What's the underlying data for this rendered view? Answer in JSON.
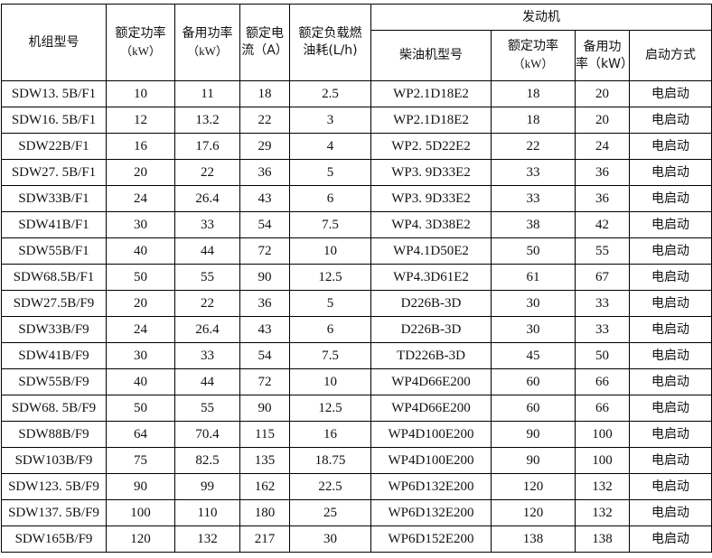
{
  "headers": {
    "model": "机组型号",
    "rated_power": "额定功率",
    "rated_power_unit": "（kW）",
    "standby_power": "备用功率",
    "standby_power_unit": "（kW）",
    "rated_current": "额定电",
    "rated_current_unit": "流（A）",
    "fuel": "额定负载燃",
    "fuel_unit": "油耗(L/h)",
    "engine": "发动机",
    "engine_model": "柴油机型号",
    "engine_rated_power": "额定功率",
    "engine_rated_power_unit": "（kW）",
    "engine_standby_power": "备用功",
    "engine_standby_power_unit": "率（kW）",
    "start_mode": "启动方式"
  },
  "rows": [
    [
      "SDW13. 5B/F1",
      "10",
      "11",
      "18",
      "2.5",
      "WP2.1D18E2",
      "18",
      "20",
      "电启动"
    ],
    [
      "SDW16. 5B/F1",
      "12",
      "13.2",
      "22",
      "3",
      "WP2.1D18E2",
      "18",
      "20",
      "电启动"
    ],
    [
      "SDW22B/F1",
      "16",
      "17.6",
      "29",
      "4",
      "WP2. 5D22E2",
      "22",
      "24",
      "电启动"
    ],
    [
      "SDW27. 5B/F1",
      "20",
      "22",
      "36",
      "5",
      "WP3. 9D33E2",
      "33",
      "36",
      "电启动"
    ],
    [
      "SDW33B/F1",
      "24",
      "26.4",
      "43",
      "6",
      "WP3. 9D33E2",
      "33",
      "36",
      "电启动"
    ],
    [
      "SDW41B/F1",
      "30",
      "33",
      "54",
      "7.5",
      "WP4. 3D38E2",
      "38",
      "42",
      "电启动"
    ],
    [
      "SDW55B/F1",
      "40",
      "44",
      "72",
      "10",
      "WP4.1D50E2",
      "50",
      "55",
      "电启动"
    ],
    [
      "SDW68.5B/F1",
      "50",
      "55",
      "90",
      "12.5",
      "WP4.3D61E2",
      "61",
      "67",
      "电启动"
    ],
    [
      "SDW27.5B/F9",
      "20",
      "22",
      "36",
      "5",
      "D226B-3D",
      "30",
      "33",
      "电启动"
    ],
    [
      "SDW33B/F9",
      "24",
      "26.4",
      "43",
      "6",
      "D226B-3D",
      "30",
      "33",
      "电启动"
    ],
    [
      "SDW41B/F9",
      "30",
      "33",
      "54",
      "7.5",
      "TD226B-3D",
      "45",
      "50",
      "电启动"
    ],
    [
      "SDW55B/F9",
      "40",
      "44",
      "72",
      "10",
      "WP4D66E200",
      "60",
      "66",
      "电启动"
    ],
    [
      "SDW68. 5B/F9",
      "50",
      "55",
      "90",
      "12.5",
      "WP4D66E200",
      "60",
      "66",
      "电启动"
    ],
    [
      "SDW88B/F9",
      "64",
      "70.4",
      "115",
      "16",
      "WP4D100E200",
      "90",
      "100",
      "电启动"
    ],
    [
      "SDW103B/F9",
      "75",
      "82.5",
      "135",
      "18.75",
      "WP4D100E200",
      "90",
      "100",
      "电启动"
    ],
    [
      "SDW123. 5B/F9",
      "90",
      "99",
      "162",
      "22.5",
      "WP6D132E200",
      "120",
      "132",
      "电启动"
    ],
    [
      "SDW137. 5B/F9",
      "100",
      "110",
      "180",
      "25",
      "WP6D132E200",
      "120",
      "132",
      "电启动"
    ],
    [
      "SDW165B/F9",
      "120",
      "132",
      "217",
      "30",
      "WP6D152E200",
      "138",
      "138",
      "电启动"
    ]
  ]
}
